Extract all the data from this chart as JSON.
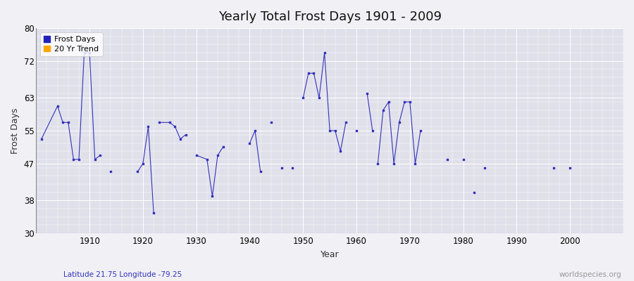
{
  "title": "Yearly Total Frost Days 1901 - 2009",
  "xlabel": "Year",
  "ylabel": "Frost Days",
  "subtitle": "Latitude 21.75 Longitude -79.25",
  "watermark": "worldspecies.org",
  "ylim": [
    30,
    80
  ],
  "xlim": [
    1900,
    2010
  ],
  "yticks": [
    30,
    38,
    47,
    55,
    63,
    72,
    80
  ],
  "xticks": [
    1910,
    1920,
    1930,
    1940,
    1950,
    1960,
    1970,
    1980,
    1990,
    2000
  ],
  "line_color": "#3333bb",
  "fig_bg_color": "#f0f0f5",
  "plot_bg_color": "#e0e0ea",
  "grid_color": "#ffffff",
  "legend_items": [
    "Frost Days",
    "20 Yr Trend"
  ],
  "legend_colors": [
    "#2222bb",
    "#FFA500"
  ],
  "years": [
    1901,
    1904,
    1905,
    1906,
    1907,
    1908,
    1909,
    1910,
    1911,
    1912,
    1914,
    1919,
    1920,
    1921,
    1922,
    1923,
    1925,
    1926,
    1927,
    1928,
    1930,
    1932,
    1933,
    1934,
    1935,
    1940,
    1941,
    1942,
    1944,
    1946,
    1948,
    1950,
    1951,
    1952,
    1953,
    1954,
    1955,
    1956,
    1957,
    1958,
    1960,
    1962,
    1963,
    1964,
    1965,
    1966,
    1967,
    1968,
    1969,
    1970,
    1971,
    1972,
    1977,
    1980,
    1982,
    1984,
    1997,
    2000
  ],
  "values": [
    53,
    61,
    57,
    57,
    48,
    48,
    74,
    74,
    48,
    49,
    45,
    45,
    47,
    56,
    35,
    57,
    57,
    56,
    53,
    54,
    49,
    48,
    39,
    49,
    51,
    52,
    55,
    45,
    57,
    46,
    46,
    63,
    69,
    69,
    63,
    74,
    55,
    55,
    50,
    57,
    55,
    64,
    55,
    47,
    60,
    62,
    47,
    57,
    62,
    62,
    47,
    55,
    48,
    48,
    40,
    46,
    46,
    46
  ],
  "connected_segments": [
    [
      1901,
      1904,
      1905,
      1906,
      1907,
      1908,
      1909,
      1910,
      1911,
      1912
    ],
    [
      1919,
      1920,
      1921,
      1922
    ],
    [
      1923,
      1925,
      1926,
      1927,
      1928
    ],
    [
      1930,
      1932,
      1933,
      1934,
      1935
    ],
    [
      1940,
      1941,
      1942
    ],
    [
      1950,
      1951,
      1952,
      1953,
      1954,
      1955,
      1956,
      1957,
      1958
    ],
    [
      1962,
      1963
    ],
    [
      1964,
      1965,
      1966,
      1967,
      1968,
      1969,
      1970,
      1971,
      1972
    ]
  ]
}
